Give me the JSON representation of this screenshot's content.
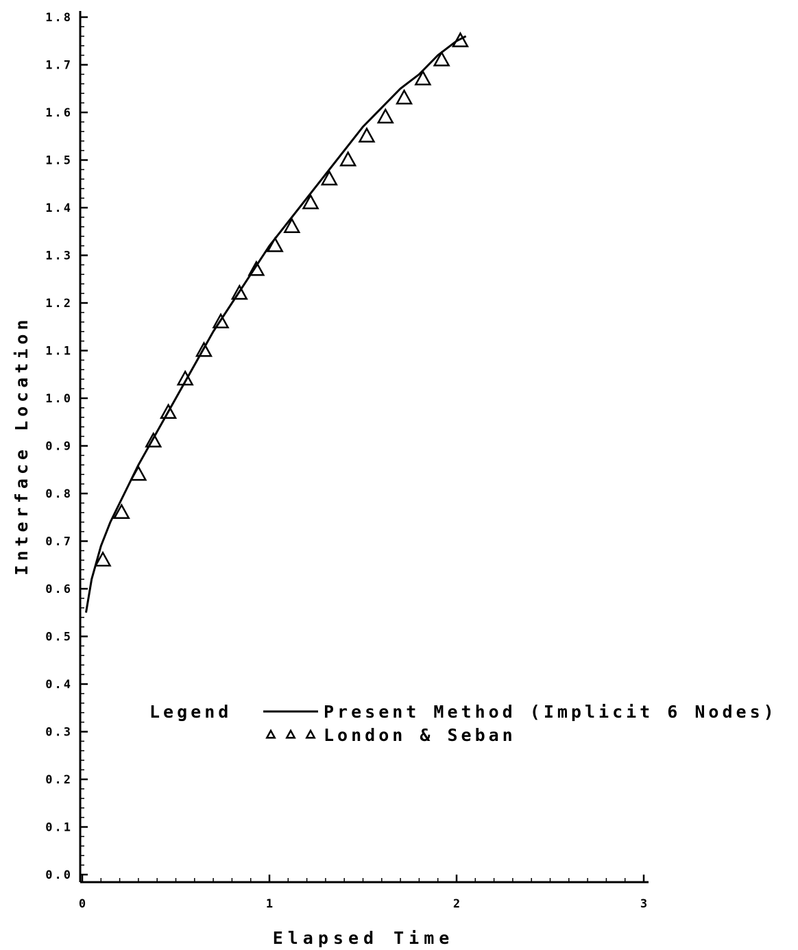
{
  "chart_data": {
    "type": "line",
    "title": "",
    "xlabel": "Elapsed Time",
    "ylabel": "Interface Location",
    "xlim": [
      0,
      3
    ],
    "ylim": [
      0,
      1.8
    ],
    "x_ticks": [
      "0",
      "1",
      "2",
      "3"
    ],
    "y_ticks": [
      "0.0",
      "0.1",
      "0.2",
      "0.3",
      "0.4",
      "0.5",
      "0.6",
      "0.7",
      "0.8",
      "0.9",
      "1.0",
      "1.1",
      "1.2",
      "1.3",
      "1.4",
      "1.5",
      "1.6",
      "1.7",
      "1.8"
    ],
    "grid": false,
    "legend": {
      "title": "Legend",
      "placement": "center-left"
    },
    "series": [
      {
        "name": "Present Method (Implicit 6 Nodes)",
        "style": "solid-line",
        "x": [
          0.02,
          0.05,
          0.1,
          0.15,
          0.2,
          0.25,
          0.3,
          0.4,
          0.5,
          0.6,
          0.7,
          0.8,
          0.9,
          1.0,
          1.1,
          1.2,
          1.3,
          1.4,
          1.5,
          1.6,
          1.7,
          1.8,
          1.9,
          2.0,
          2.05
        ],
        "y": [
          0.55,
          0.62,
          0.69,
          0.74,
          0.78,
          0.82,
          0.86,
          0.93,
          1.0,
          1.07,
          1.14,
          1.2,
          1.26,
          1.32,
          1.37,
          1.42,
          1.47,
          1.52,
          1.57,
          1.61,
          1.65,
          1.68,
          1.72,
          1.75,
          1.76
        ]
      },
      {
        "name": "London & Seban",
        "style": "triangle-markers",
        "x": [
          0.11,
          0.21,
          0.3,
          0.38,
          0.46,
          0.55,
          0.65,
          0.74,
          0.84,
          0.93,
          1.03,
          1.12,
          1.22,
          1.32,
          1.42,
          1.52,
          1.62,
          1.72,
          1.82,
          1.92,
          2.02
        ],
        "y": [
          0.66,
          0.76,
          0.84,
          0.91,
          0.97,
          1.04,
          1.1,
          1.16,
          1.22,
          1.27,
          1.32,
          1.36,
          1.41,
          1.46,
          1.5,
          1.55,
          1.59,
          1.63,
          1.67,
          1.71,
          1.75
        ]
      }
    ]
  }
}
